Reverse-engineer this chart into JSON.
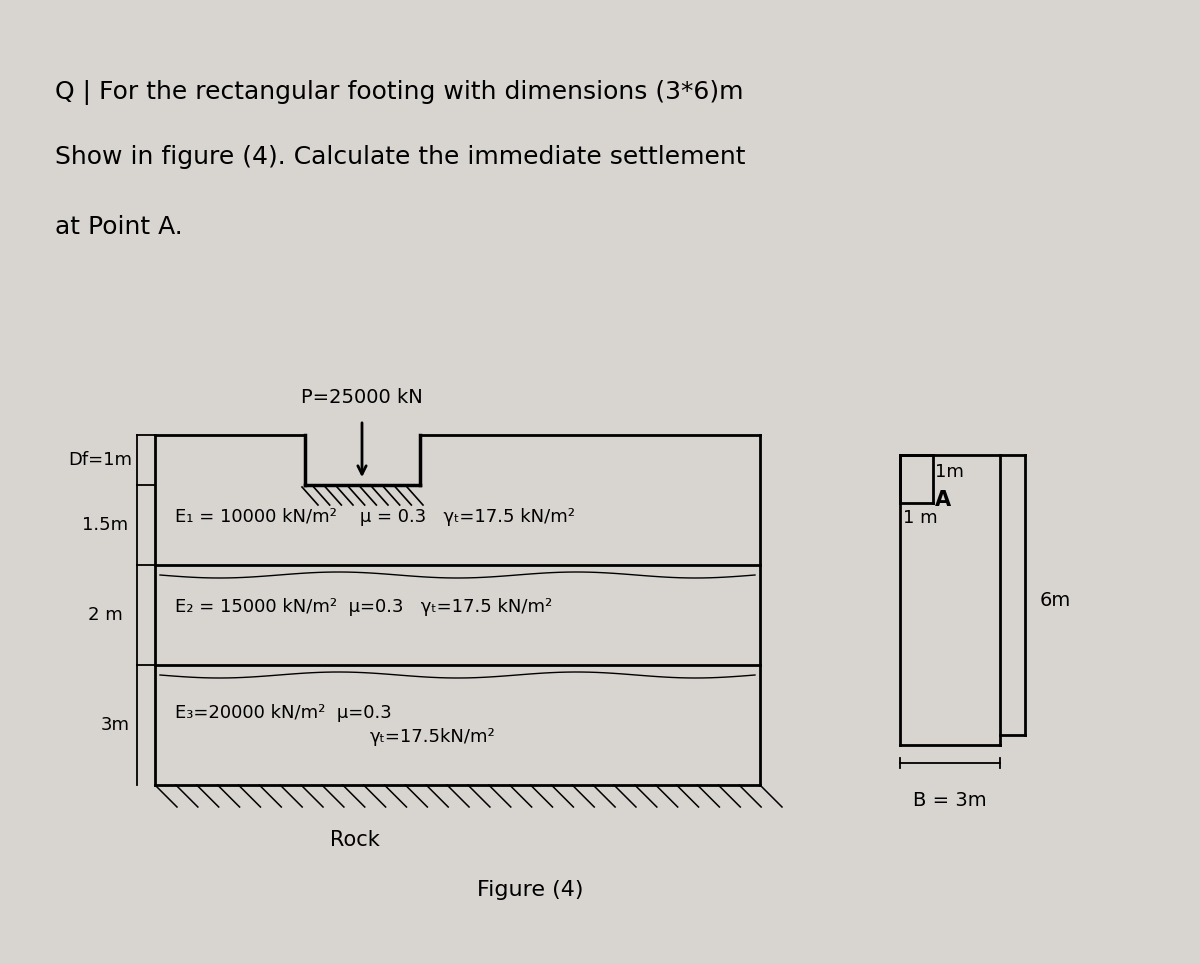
{
  "bg_color": "#c8c8c8",
  "paper_color": "#d8d5d0",
  "title_line1": "Q | For the rectangular footing with dimensions (3*6)m",
  "title_line2": "Show in figure (4). Calculate the immediate settlement",
  "title_line3": "at Point A.",
  "load_label": "P=25000 kN",
  "df_label": "Df=1m",
  "layer1_thickness": "1.5m",
  "layer2_thickness": "2 m",
  "layer3_thickness": "3m",
  "layer1_text": "E₁ = 10000 kN/m²    μ = 0.3   γₜ=17.5 kN/m²",
  "layer2_text": "E₂ = 15000 kN/m²  μ=0.3   γₜ=17.5 kN/m²",
  "layer3_text_E": "E₃=20000 kN/m²  μ=0.3",
  "layer3_text_g": "γₜ=17.5kN/m²",
  "rock_label": "Rock",
  "figure_label": "Figure (4)",
  "plan_1m_top": "1m",
  "plan_1m_left": "1 m",
  "plan_A": "A",
  "plan_B": "B = 3m",
  "plan_6m": "6m"
}
